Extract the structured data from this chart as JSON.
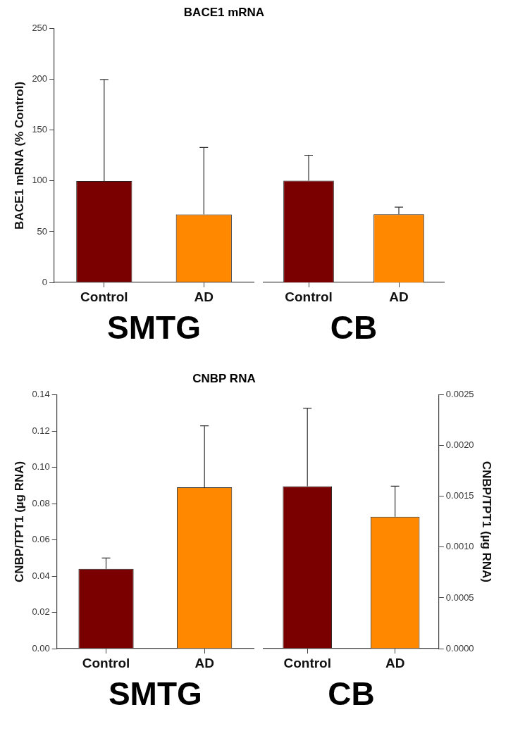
{
  "chart_data": [
    {
      "type": "bar",
      "title": "BACE1 mRNA",
      "ylabel": "BACE1 mRNA (% Control)",
      "xlabel": "SMTG",
      "categories": [
        "Control",
        "AD"
      ],
      "ylim": [
        0,
        250
      ],
      "yticks": [
        0,
        50,
        100,
        150,
        200,
        250
      ],
      "grid": false,
      "series": [
        {
          "values": [
            100,
            67
          ],
          "colors": [
            "#7a0000",
            "#ff8800"
          ],
          "errors": [
            [
              100,
              200
            ],
            [
              67,
              133
            ]
          ]
        }
      ]
    },
    {
      "type": "bar",
      "xlabel": "CB",
      "categories": [
        "Control",
        "AD"
      ],
      "ylim": [
        0,
        250
      ],
      "tick_labels": "x",
      "grid": false,
      "series": [
        {
          "values": [
            100,
            67
          ],
          "colors": [
            "#7a0000",
            "#ff8800"
          ],
          "errors": [
            [
              100,
              125
            ],
            [
              67,
              74
            ]
          ]
        }
      ]
    },
    {
      "type": "bar",
      "title": "CNBP RNA",
      "ylabel": "CNBP/TPT1 (µg RNA)",
      "xlabel": "SMTG",
      "categories": [
        "Control",
        "AD"
      ],
      "ylim": [
        0,
        0.14
      ],
      "yticks": [
        {
          "value": 0,
          "label": "0.00"
        },
        {
          "value": 0.02,
          "label": "0.02"
        },
        {
          "value": 0.04,
          "label": "0.04"
        },
        {
          "value": 0.06,
          "label": "0.06"
        },
        {
          "value": 0.08,
          "label": "0.08"
        },
        {
          "value": 0.1,
          "label": "0.10"
        },
        {
          "value": 0.12,
          "label": "0.12"
        },
        {
          "value": 0.14,
          "label": "0.14"
        }
      ],
      "grid": false,
      "series": [
        {
          "values": [
            0.044,
            0.089
          ],
          "colors": [
            "#7a0000",
            "#ff8800"
          ],
          "errors": [
            [
              0.044,
              0.05
            ],
            [
              0.089,
              0.123
            ]
          ]
        }
      ]
    },
    {
      "type": "bar",
      "y2label": "CNBP/TPT1 (µg RNA)",
      "xlabel": "CB",
      "categories": [
        "Control",
        "AD"
      ],
      "y2lim": [
        0,
        0.0025
      ],
      "y2ticks": [
        {
          "value": 0,
          "label": "0.0000"
        },
        {
          "value": 0.0005,
          "label": "0.0005"
        },
        {
          "value": 0.001,
          "label": "0.0010"
        },
        {
          "value": 0.0015,
          "label": "0.0015"
        },
        {
          "value": 0.002,
          "label": "0.0020"
        },
        {
          "value": 0.0025,
          "label": "0.0025"
        }
      ],
      "grid": false,
      "series": [
        {
          "axis": "y2",
          "values": [
            0.0016,
            0.0013
          ],
          "colors": [
            "#7a0000",
            "#ff8800"
          ],
          "errors": [
            [
              0.0016,
              0.00237
            ],
            [
              0.0013,
              0.0016
            ]
          ]
        }
      ]
    }
  ]
}
